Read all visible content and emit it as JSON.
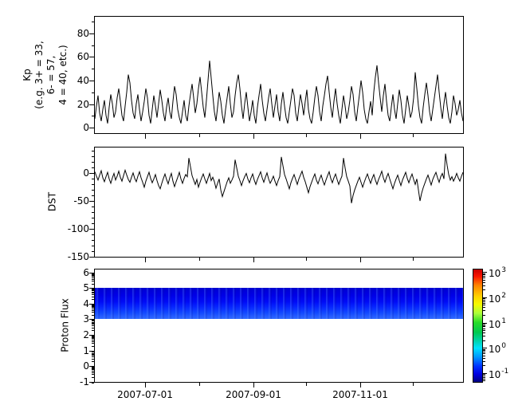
{
  "figure": {
    "background": "#ffffff",
    "axis_color": "#000000",
    "trace_color": "#000000"
  },
  "panels": {
    "kp": {
      "ylabel": "Kp\n(e.g. 3+ = 33,\n6- = 57,\n4 = 40, etc.)"
    },
    "dst": {
      "ylabel": "DST"
    },
    "proton": {
      "ylabel": "Proton Flux"
    }
  },
  "xaxis": {
    "range": [
      "2007-06-02",
      "2007-12-30"
    ],
    "major_tick_dates": [
      "2007-07-01",
      "2007-09-01",
      "2007-11-01"
    ],
    "minor_tick_dates": [
      "2007-08-01",
      "2007-10-01",
      "2007-12-01"
    ],
    "tick_labels": [
      "2007-07-01",
      "2007-09-01",
      "2007-11-01"
    ]
  },
  "chart_data": [
    {
      "type": "line",
      "name": "kp_index",
      "ylabel": "Kp (e.g. 3+ = 33, 6- = 57, 4 = 40, etc.)",
      "yticks": [
        0,
        20,
        40,
        60,
        80
      ],
      "minor_tick_step": 10,
      "ylim": [
        -5.4,
        94.9
      ],
      "x_range": [
        "2007-06-02",
        "2007-12-30"
      ],
      "line_color": "#000000",
      "grid": false,
      "values": [
        7,
        18,
        27,
        12,
        5,
        15,
        23,
        10,
        3,
        17,
        28,
        20,
        8,
        13,
        25,
        33,
        22,
        10,
        5,
        18,
        30,
        45,
        38,
        23,
        12,
        7,
        20,
        28,
        15,
        5,
        13,
        22,
        33,
        25,
        10,
        3,
        15,
        27,
        18,
        8,
        20,
        32,
        23,
        12,
        5,
        17,
        25,
        13,
        7,
        22,
        35,
        28,
        15,
        8,
        3,
        13,
        23,
        10,
        5,
        18,
        28,
        37,
        25,
        12,
        20,
        33,
        43,
        30,
        17,
        8,
        23,
        40,
        57,
        42,
        27,
        13,
        5,
        17,
        30,
        22,
        10,
        3,
        15,
        25,
        35,
        20,
        8,
        13,
        27,
        38,
        45,
        33,
        18,
        7,
        20,
        30,
        17,
        5,
        13,
        23,
        10,
        3,
        17,
        27,
        37,
        23,
        12,
        5,
        15,
        25,
        33,
        20,
        8,
        18,
        28,
        13,
        5,
        20,
        30,
        18,
        8,
        3,
        13,
        23,
        33,
        27,
        12,
        5,
        17,
        28,
        20,
        10,
        22,
        32,
        15,
        7,
        3,
        13,
        25,
        35,
        27,
        13,
        5,
        18,
        27,
        37,
        44,
        30,
        17,
        8,
        22,
        33,
        20,
        10,
        3,
        15,
        27,
        18,
        7,
        13,
        23,
        35,
        28,
        13,
        5,
        17,
        28,
        40,
        30,
        15,
        7,
        3,
        13,
        22,
        10,
        30,
        43,
        53,
        38,
        25,
        13,
        27,
        37,
        22,
        10,
        5,
        17,
        28,
        15,
        7,
        20,
        32,
        23,
        10,
        3,
        15,
        27,
        18,
        8,
        13,
        25,
        47,
        33,
        18,
        8,
        3,
        17,
        28,
        38,
        27,
        13,
        5,
        15,
        25,
        35,
        45,
        30,
        17,
        7,
        20,
        30,
        18,
        8,
        3,
        13,
        27,
        20,
        10,
        15,
        23,
        12,
        5
      ]
    },
    {
      "type": "line",
      "name": "dst_index",
      "ylabel": "DST",
      "yticks": [
        0,
        -50,
        -100,
        -150
      ],
      "minor_tick_step": 10,
      "ylim": [
        -151.4,
        47.1
      ],
      "x_range": [
        "2007-06-02",
        "2007-12-30"
      ],
      "line_color": "#000000",
      "grid": false,
      "values": [
        3,
        -5,
        -12,
        -3,
        5,
        -8,
        -15,
        -6,
        2,
        -10,
        -18,
        -8,
        0,
        -12,
        -5,
        4,
        -7,
        -14,
        -4,
        6,
        -3,
        -11,
        -16,
        -7,
        1,
        -9,
        -15,
        -5,
        3,
        -8,
        -16,
        -25,
        -14,
        -6,
        2,
        -9,
        -17,
        -10,
        -2,
        -13,
        -22,
        -28,
        -18,
        -9,
        -1,
        -11,
        -19,
        -8,
        0,
        -14,
        -24,
        -15,
        -7,
        2,
        -10,
        -18,
        -9,
        -2,
        -6,
        28,
        12,
        -4,
        -12,
        -20,
        -11,
        -25,
        -16,
        -8,
        -1,
        -10,
        -18,
        -9,
        0,
        -13,
        -7,
        -15,
        -27,
        -18,
        -10,
        -30,
        -42,
        -33,
        -24,
        -15,
        -8,
        -18,
        -12,
        -5,
        25,
        10,
        -5,
        -13,
        -22,
        -13,
        -6,
        0,
        -10,
        -17,
        -8,
        -1,
        -12,
        -20,
        -11,
        -4,
        3,
        -8,
        -16,
        -7,
        1,
        -10,
        -18,
        -12,
        -5,
        -14,
        -22,
        -13,
        -6,
        30,
        14,
        -2,
        -10,
        -19,
        -28,
        -17,
        -9,
        -2,
        -11,
        -20,
        -10,
        -3,
        4,
        -7,
        -15,
        -25,
        -35,
        -24,
        -16,
        -8,
        -1,
        -12,
        -19,
        -10,
        -3,
        -13,
        -21,
        -12,
        -4,
        3,
        -9,
        -17,
        -8,
        -1,
        -11,
        -20,
        -12,
        -5,
        28,
        10,
        -6,
        -14,
        -23,
        -54,
        -40,
        -30,
        -22,
        -14,
        -7,
        -16,
        -25,
        -16,
        -8,
        -1,
        -10,
        -18,
        -9,
        -2,
        -12,
        -20,
        -11,
        -4,
        4,
        -8,
        -16,
        -7,
        0,
        -10,
        -19,
        -28,
        -18,
        -10,
        -3,
        -13,
        -22,
        -12,
        -5,
        2,
        -9,
        -17,
        -8,
        -1,
        -11,
        -20,
        -10,
        -30,
        -50,
        -36,
        -26,
        -18,
        -10,
        -3,
        -12,
        -21,
        -11,
        -4,
        2,
        -8,
        -16,
        -6,
        0,
        -10,
        36,
        15,
        -2,
        -12,
        -6,
        -14,
        -8,
        0,
        -8,
        -14,
        -5,
        2
      ]
    },
    {
      "type": "heatmap",
      "name": "proton_flux",
      "ylabel": "Proton Flux",
      "yticks": [
        -1,
        0,
        1,
        2,
        3,
        4,
        5,
        6
      ],
      "log_minor_ticks": true,
      "ylim": [
        -1.07,
        6.25
      ],
      "x_range": [
        "2007-06-02",
        "2007-12-30"
      ],
      "band": {
        "y_min": 3,
        "y_max": 5,
        "color_top": "#0000d0",
        "color_bottom": "#2a66ff",
        "note": "uniform low-flux dark-blue band spanning the whole time range; brighter blue streaks near lower edge"
      },
      "colorbar": {
        "scale": "log",
        "colormap": "jet",
        "tick_exponents": [
          3,
          2,
          1,
          0,
          -1
        ],
        "explim": [
          -1.38,
          3.13
        ],
        "label_base": "10"
      }
    }
  ]
}
